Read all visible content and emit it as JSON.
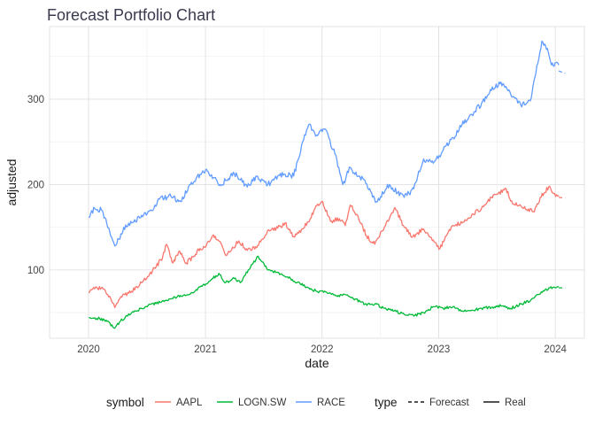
{
  "chart_data": {
    "type": "line",
    "title": "Forecast Portfolio Chart",
    "xlabel": "date",
    "ylabel": "adjusted",
    "x_range": [
      "2019-09-01",
      "2024-04-01"
    ],
    "ylim": [
      20,
      385
    ],
    "x_ticks": [
      {
        "date": "2020-01-01",
        "label": "2020"
      },
      {
        "date": "2021-01-01",
        "label": "2021"
      },
      {
        "date": "2022-01-01",
        "label": "2022"
      },
      {
        "date": "2023-01-01",
        "label": "2023"
      },
      {
        "date": "2024-01-01",
        "label": "2024"
      }
    ],
    "y_ticks": [
      100,
      200,
      300
    ],
    "grid": true,
    "legend_position": "bottom",
    "legends": [
      {
        "title": "symbol",
        "entries": [
          "AAPL",
          "LOGN.SW",
          "RACE"
        ]
      },
      {
        "title": "type",
        "entries": [
          "Forecast",
          "Real"
        ]
      }
    ],
    "series": [
      {
        "name": "AAPL",
        "color": "#F8766D",
        "type": "Real",
        "points": [
          [
            "2020-01-02",
            73
          ],
          [
            "2020-01-20",
            78
          ],
          [
            "2020-02-10",
            79
          ],
          [
            "2020-02-24",
            74
          ],
          [
            "2020-03-10",
            67
          ],
          [
            "2020-03-23",
            56
          ],
          [
            "2020-04-14",
            68
          ],
          [
            "2020-05-15",
            75
          ],
          [
            "2020-06-15",
            85
          ],
          [
            "2020-07-10",
            95
          ],
          [
            "2020-07-31",
            104
          ],
          [
            "2020-08-20",
            115
          ],
          [
            "2020-09-01",
            130
          ],
          [
            "2020-09-21",
            108
          ],
          [
            "2020-10-12",
            122
          ],
          [
            "2020-11-02",
            108
          ],
          [
            "2020-11-25",
            116
          ],
          [
            "2020-12-15",
            125
          ],
          [
            "2021-01-04",
            129
          ],
          [
            "2021-01-26",
            141
          ],
          [
            "2021-02-12",
            134
          ],
          [
            "2021-03-08",
            117
          ],
          [
            "2021-04-15",
            134
          ],
          [
            "2021-05-12",
            123
          ],
          [
            "2021-06-10",
            126
          ],
          [
            "2021-07-14",
            146
          ],
          [
            "2021-08-15",
            149
          ],
          [
            "2021-09-07",
            155
          ],
          [
            "2021-10-04",
            139
          ],
          [
            "2021-11-01",
            148
          ],
          [
            "2021-11-25",
            160
          ],
          [
            "2021-12-15",
            175
          ],
          [
            "2022-01-03",
            180
          ],
          [
            "2022-01-27",
            157
          ],
          [
            "2022-02-24",
            160
          ],
          [
            "2022-03-14",
            152
          ],
          [
            "2022-03-30",
            176
          ],
          [
            "2022-04-20",
            165
          ],
          [
            "2022-05-20",
            140
          ],
          [
            "2022-06-15",
            130
          ],
          [
            "2022-07-15",
            150
          ],
          [
            "2022-08-17",
            173
          ],
          [
            "2022-09-15",
            150
          ],
          [
            "2022-10-12",
            139
          ],
          [
            "2022-11-15",
            148
          ],
          [
            "2022-12-15",
            135
          ],
          [
            "2023-01-05",
            125
          ],
          [
            "2023-01-25",
            140
          ],
          [
            "2023-02-15",
            152
          ],
          [
            "2023-03-15",
            155
          ],
          [
            "2023-04-15",
            165
          ],
          [
            "2023-05-15",
            172
          ],
          [
            "2023-06-15",
            185
          ],
          [
            "2023-07-31",
            195
          ],
          [
            "2023-08-20",
            178
          ],
          [
            "2023-09-15",
            175
          ],
          [
            "2023-10-27",
            168
          ],
          [
            "2023-11-15",
            185
          ],
          [
            "2023-12-14",
            198
          ],
          [
            "2024-01-02",
            186
          ],
          [
            "2024-01-12",
            187
          ]
        ]
      },
      {
        "name": "AAPL",
        "color": "#F8766D",
        "type": "Forecast",
        "points": [
          [
            "2024-01-12",
            185
          ],
          [
            "2024-02-01",
            184
          ]
        ]
      },
      {
        "name": "LOGN.SW",
        "color": "#00BA38",
        "type": "Real",
        "points": [
          [
            "2020-01-02",
            44
          ],
          [
            "2020-02-05",
            43
          ],
          [
            "2020-03-05",
            39
          ],
          [
            "2020-03-20",
            32
          ],
          [
            "2020-04-10",
            40
          ],
          [
            "2020-05-15",
            50
          ],
          [
            "2020-06-15",
            55
          ],
          [
            "2020-07-15",
            60
          ],
          [
            "2020-08-15",
            62
          ],
          [
            "2020-09-15",
            66
          ],
          [
            "2020-10-15",
            70
          ],
          [
            "2020-11-15",
            72
          ],
          [
            "2020-12-15",
            80
          ],
          [
            "2021-01-15",
            87
          ],
          [
            "2021-02-12",
            96
          ],
          [
            "2021-03-05",
            85
          ],
          [
            "2021-04-01",
            90
          ],
          [
            "2021-04-20",
            85
          ],
          [
            "2021-05-15",
            100
          ],
          [
            "2021-06-08",
            112
          ],
          [
            "2021-06-15",
            116
          ],
          [
            "2021-07-15",
            100
          ],
          [
            "2021-08-15",
            97
          ],
          [
            "2021-09-15",
            92
          ],
          [
            "2021-10-15",
            85
          ],
          [
            "2021-11-15",
            80
          ],
          [
            "2021-12-15",
            75
          ],
          [
            "2022-01-15",
            74
          ],
          [
            "2022-02-15",
            70
          ],
          [
            "2022-03-15",
            71
          ],
          [
            "2022-04-15",
            66
          ],
          [
            "2022-05-15",
            60
          ],
          [
            "2022-06-15",
            60
          ],
          [
            "2022-07-15",
            55
          ],
          [
            "2022-08-15",
            52
          ],
          [
            "2022-09-15",
            48
          ],
          [
            "2022-10-15",
            46
          ],
          [
            "2022-11-15",
            50
          ],
          [
            "2022-12-15",
            57
          ],
          [
            "2023-01-15",
            55
          ],
          [
            "2023-02-15",
            57
          ],
          [
            "2023-03-15",
            52
          ],
          [
            "2023-04-15",
            53
          ],
          [
            "2023-05-15",
            55
          ],
          [
            "2023-06-15",
            56
          ],
          [
            "2023-07-15",
            58
          ],
          [
            "2023-08-15",
            55
          ],
          [
            "2023-09-15",
            60
          ],
          [
            "2023-10-15",
            64
          ],
          [
            "2023-11-15",
            72
          ],
          [
            "2023-12-15",
            79
          ],
          [
            "2024-01-12",
            80
          ]
        ]
      },
      {
        "name": "LOGN.SW",
        "color": "#00BA38",
        "type": "Forecast",
        "points": [
          [
            "2024-01-12",
            79
          ],
          [
            "2024-02-01",
            79
          ]
        ]
      },
      {
        "name": "RACE",
        "color": "#619CFF",
        "type": "Real",
        "points": [
          [
            "2020-01-02",
            161
          ],
          [
            "2020-01-20",
            172
          ],
          [
            "2020-02-10",
            170
          ],
          [
            "2020-02-24",
            160
          ],
          [
            "2020-03-10",
            140
          ],
          [
            "2020-03-23",
            128
          ],
          [
            "2020-04-05",
            136
          ],
          [
            "2020-04-20",
            150
          ],
          [
            "2020-05-15",
            155
          ],
          [
            "2020-06-15",
            164
          ],
          [
            "2020-07-15",
            170
          ],
          [
            "2020-08-10",
            183
          ],
          [
            "2020-09-15",
            186
          ],
          [
            "2020-10-15",
            180
          ],
          [
            "2020-11-15",
            200
          ],
          [
            "2020-12-15",
            212
          ],
          [
            "2021-01-04",
            218
          ],
          [
            "2021-01-26",
            208
          ],
          [
            "2021-02-15",
            200
          ],
          [
            "2021-03-08",
            205
          ],
          [
            "2021-04-01",
            213
          ],
          [
            "2021-05-12",
            197
          ],
          [
            "2021-06-10",
            210
          ],
          [
            "2021-07-15",
            200
          ],
          [
            "2021-08-15",
            210
          ],
          [
            "2021-09-07",
            212
          ],
          [
            "2021-10-04",
            210
          ],
          [
            "2021-11-01",
            250
          ],
          [
            "2021-11-20",
            270
          ],
          [
            "2021-12-15",
            258
          ],
          [
            "2022-01-10",
            265
          ],
          [
            "2022-02-10",
            236
          ],
          [
            "2022-03-07",
            200
          ],
          [
            "2022-03-30",
            220
          ],
          [
            "2022-04-20",
            210
          ],
          [
            "2022-05-15",
            205
          ],
          [
            "2022-06-20",
            180
          ],
          [
            "2022-07-31",
            200
          ],
          [
            "2022-08-25",
            190
          ],
          [
            "2022-09-15",
            185
          ],
          [
            "2022-10-15",
            195
          ],
          [
            "2022-11-15",
            230
          ],
          [
            "2022-12-15",
            225
          ],
          [
            "2023-01-15",
            240
          ],
          [
            "2023-02-15",
            255
          ],
          [
            "2023-03-15",
            270
          ],
          [
            "2023-04-15",
            282
          ],
          [
            "2023-05-15",
            295
          ],
          [
            "2023-06-15",
            310
          ],
          [
            "2023-07-15",
            320
          ],
          [
            "2023-08-15",
            305
          ],
          [
            "2023-09-15",
            293
          ],
          [
            "2023-10-15",
            298
          ],
          [
            "2023-11-01",
            330
          ],
          [
            "2023-11-20",
            368
          ],
          [
            "2023-12-10",
            355
          ],
          [
            "2023-12-20",
            340
          ],
          [
            "2024-01-12",
            340
          ]
        ]
      },
      {
        "name": "RACE",
        "color": "#619CFF",
        "type": "Forecast",
        "points": [
          [
            "2024-01-12",
            333
          ],
          [
            "2024-02-01",
            330
          ]
        ]
      }
    ]
  }
}
